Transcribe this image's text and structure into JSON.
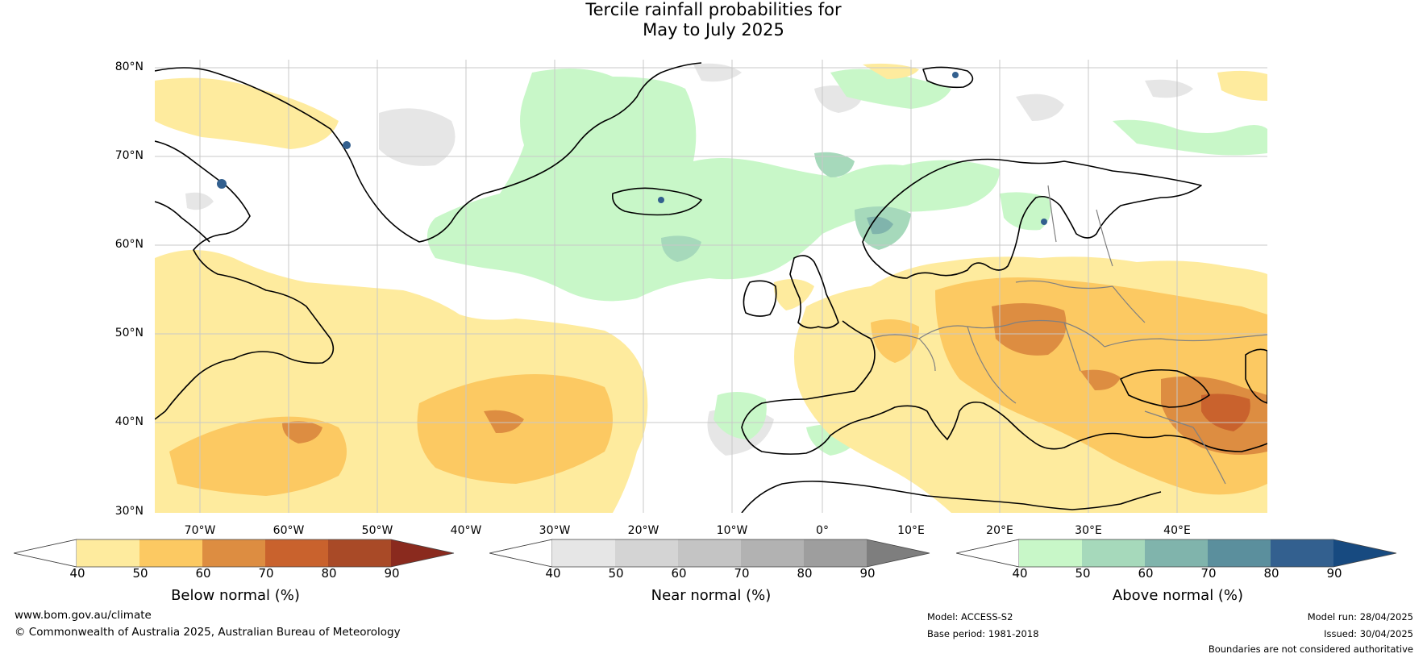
{
  "title": {
    "line1": "Tercile rainfall probabilities for",
    "line2": "May to July 2025"
  },
  "map": {
    "region": "North Atlantic and Europe",
    "lat_labels": [
      "80°N",
      "70°N",
      "60°N",
      "50°N",
      "40°N",
      "30°N"
    ],
    "lon_labels": [
      "70°W",
      "60°W",
      "50°W",
      "40°W",
      "30°W",
      "20°W",
      "10°W",
      "0°",
      "10°E",
      "20°E",
      "30°E",
      "40°E"
    ],
    "colors": {
      "land_outline": "#000000",
      "border": "#808080",
      "grid": "#c8c8c8"
    }
  },
  "colorbars": [
    {
      "label": "Below normal (%)",
      "ticks": [
        "40",
        "50",
        "60",
        "70",
        "80",
        "90"
      ],
      "colors": [
        "#ffffff",
        "#feeb9e",
        "#fcc962",
        "#dd8d41",
        "#c9622d",
        "#a94a27",
        "#8a2a1e"
      ]
    },
    {
      "label": "Near normal (%)",
      "ticks": [
        "40",
        "50",
        "60",
        "70",
        "80",
        "90"
      ],
      "colors": [
        "#ffffff",
        "#e6e6e6",
        "#d4d4d4",
        "#c4c4c4",
        "#b2b2b2",
        "#9e9e9e",
        "#7e7e7e"
      ]
    },
    {
      "label": "Above normal (%)",
      "ticks": [
        "40",
        "50",
        "60",
        "70",
        "80",
        "90"
      ],
      "colors": [
        "#ffffff",
        "#c8f7c8",
        "#a6d9bb",
        "#80b4ac",
        "#5b8f9d",
        "#33608f",
        "#174a80"
      ]
    }
  ],
  "footer": {
    "url": "www.bom.gov.au/climate",
    "copyright": "© Commonwealth of Australia 2025, Australian Bureau of Meteorology",
    "model": "Model: ACCESS-S2",
    "base_period": "Base period: 1981-2018",
    "model_run": "Model run: 28/04/2025",
    "issued": "Issued: 30/04/2025",
    "disclaimer": "Boundaries are not considered authoritative"
  }
}
